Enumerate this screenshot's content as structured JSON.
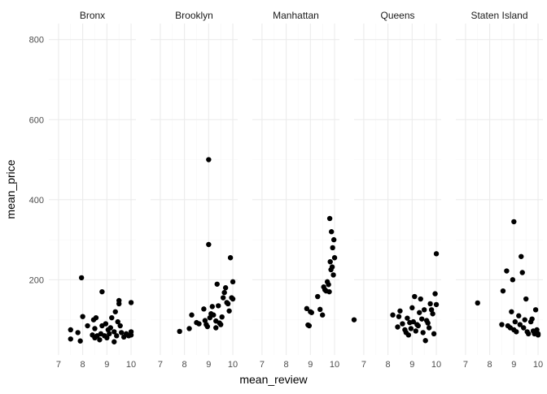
{
  "chart_data": {
    "type": "scatter",
    "facet_style": "small-multiples",
    "xlabel": "mean_review",
    "ylabel": "mean_price",
    "xlim": [
      6.6,
      10.2
    ],
    "ylim": [
      12,
      840
    ],
    "x_ticks": [
      7,
      8,
      9,
      10
    ],
    "y_ticks": [
      200,
      400,
      600,
      800
    ],
    "grid": true,
    "legend": "none",
    "point_color": "#000000",
    "grid_color": "#ebebeb",
    "panels": [
      {
        "label": "Bronx",
        "points": [
          [
            7.5,
            75
          ],
          [
            7.5,
            52
          ],
          [
            7.8,
            68
          ],
          [
            7.9,
            47
          ],
          [
            7.95,
            205
          ],
          [
            8.0,
            108
          ],
          [
            8.2,
            85
          ],
          [
            8.4,
            62
          ],
          [
            8.45,
            100
          ],
          [
            8.5,
            55
          ],
          [
            8.5,
            78
          ],
          [
            8.55,
            105
          ],
          [
            8.6,
            60
          ],
          [
            8.7,
            50
          ],
          [
            8.75,
            65
          ],
          [
            8.8,
            170
          ],
          [
            8.8,
            85
          ],
          [
            8.9,
            60
          ],
          [
            8.95,
            90
          ],
          [
            9.0,
            55
          ],
          [
            9.05,
            75
          ],
          [
            9.1,
            65
          ],
          [
            9.15,
            80
          ],
          [
            9.2,
            105
          ],
          [
            9.3,
            45
          ],
          [
            9.3,
            70
          ],
          [
            9.35,
            120
          ],
          [
            9.4,
            60
          ],
          [
            9.45,
            95
          ],
          [
            9.5,
            140
          ],
          [
            9.5,
            148
          ],
          [
            9.55,
            85
          ],
          [
            9.6,
            68
          ],
          [
            9.7,
            57
          ],
          [
            9.8,
            65
          ],
          [
            9.9,
            60
          ],
          [
            10.0,
            143
          ],
          [
            10.0,
            70
          ],
          [
            10.0,
            62
          ]
        ]
      },
      {
        "label": "Brooklyn",
        "points": [
          [
            7.8,
            71
          ],
          [
            8.2,
            78
          ],
          [
            8.3,
            112
          ],
          [
            8.5,
            93
          ],
          [
            8.6,
            90
          ],
          [
            8.8,
            127
          ],
          [
            8.85,
            98
          ],
          [
            8.9,
            88
          ],
          [
            8.95,
            83
          ],
          [
            9.0,
            500
          ],
          [
            9.0,
            288
          ],
          [
            9.05,
            105
          ],
          [
            9.1,
            115
          ],
          [
            9.15,
            133
          ],
          [
            9.2,
            112
          ],
          [
            9.3,
            97
          ],
          [
            9.3,
            80
          ],
          [
            9.35,
            189
          ],
          [
            9.4,
            135
          ],
          [
            9.45,
            92
          ],
          [
            9.5,
            88
          ],
          [
            9.55,
            107
          ],
          [
            9.6,
            155
          ],
          [
            9.65,
            168
          ],
          [
            9.7,
            180
          ],
          [
            9.75,
            143
          ],
          [
            9.8,
            140
          ],
          [
            9.85,
            122
          ],
          [
            9.9,
            255
          ],
          [
            9.95,
            155
          ],
          [
            10.0,
            195
          ],
          [
            10.0,
            152
          ]
        ]
      },
      {
        "label": "Manhattan",
        "points": [
          [
            8.85,
            128
          ],
          [
            8.9,
            87
          ],
          [
            8.95,
            85
          ],
          [
            9.0,
            120
          ],
          [
            9.05,
            118
          ],
          [
            9.3,
            158
          ],
          [
            9.4,
            126
          ],
          [
            9.5,
            112
          ],
          [
            9.55,
            182
          ],
          [
            9.6,
            175
          ],
          [
            9.65,
            172
          ],
          [
            9.7,
            195
          ],
          [
            9.75,
            188
          ],
          [
            9.78,
            170
          ],
          [
            9.8,
            353
          ],
          [
            9.82,
            245
          ],
          [
            9.85,
            225
          ],
          [
            9.87,
            320
          ],
          [
            9.9,
            232
          ],
          [
            9.92,
            280
          ],
          [
            9.95,
            212
          ],
          [
            9.97,
            300
          ],
          [
            10.0,
            255
          ]
        ]
      },
      {
        "label": "Queens",
        "points": [
          [
            6.6,
            100
          ],
          [
            8.2,
            112
          ],
          [
            8.4,
            82
          ],
          [
            8.45,
            108
          ],
          [
            8.5,
            122
          ],
          [
            8.6,
            90
          ],
          [
            8.7,
            75
          ],
          [
            8.75,
            68
          ],
          [
            8.8,
            104
          ],
          [
            8.85,
            62
          ],
          [
            8.9,
            93
          ],
          [
            8.95,
            78
          ],
          [
            9.0,
            130
          ],
          [
            9.05,
            95
          ],
          [
            9.1,
            158
          ],
          [
            9.15,
            72
          ],
          [
            9.2,
            88
          ],
          [
            9.25,
            85
          ],
          [
            9.3,
            118
          ],
          [
            9.35,
            152
          ],
          [
            9.4,
            102
          ],
          [
            9.45,
            68
          ],
          [
            9.5,
            125
          ],
          [
            9.55,
            48
          ],
          [
            9.6,
            98
          ],
          [
            9.65,
            92
          ],
          [
            9.7,
            80
          ],
          [
            9.75,
            140
          ],
          [
            9.8,
            125
          ],
          [
            9.85,
            115
          ],
          [
            9.9,
            65
          ],
          [
            9.95,
            165
          ],
          [
            10.0,
            265
          ],
          [
            10.0,
            138
          ]
        ]
      },
      {
        "label": "Staten Island",
        "points": [
          [
            7.5,
            142
          ],
          [
            8.5,
            88
          ],
          [
            8.55,
            172
          ],
          [
            8.7,
            222
          ],
          [
            8.75,
            85
          ],
          [
            8.85,
            80
          ],
          [
            8.9,
            120
          ],
          [
            8.95,
            200
          ],
          [
            9.0,
            345
          ],
          [
            9.0,
            75
          ],
          [
            9.05,
            95
          ],
          [
            9.1,
            70
          ],
          [
            9.2,
            110
          ],
          [
            9.25,
            88
          ],
          [
            9.3,
            258
          ],
          [
            9.35,
            218
          ],
          [
            9.4,
            80
          ],
          [
            9.45,
            100
          ],
          [
            9.5,
            152
          ],
          [
            9.55,
            70
          ],
          [
            9.6,
            65
          ],
          [
            9.7,
            95
          ],
          [
            9.75,
            102
          ],
          [
            9.8,
            72
          ],
          [
            9.85,
            65
          ],
          [
            9.9,
            125
          ],
          [
            9.95,
            75
          ],
          [
            10.0,
            65
          ],
          [
            10.0,
            62
          ]
        ]
      }
    ]
  }
}
